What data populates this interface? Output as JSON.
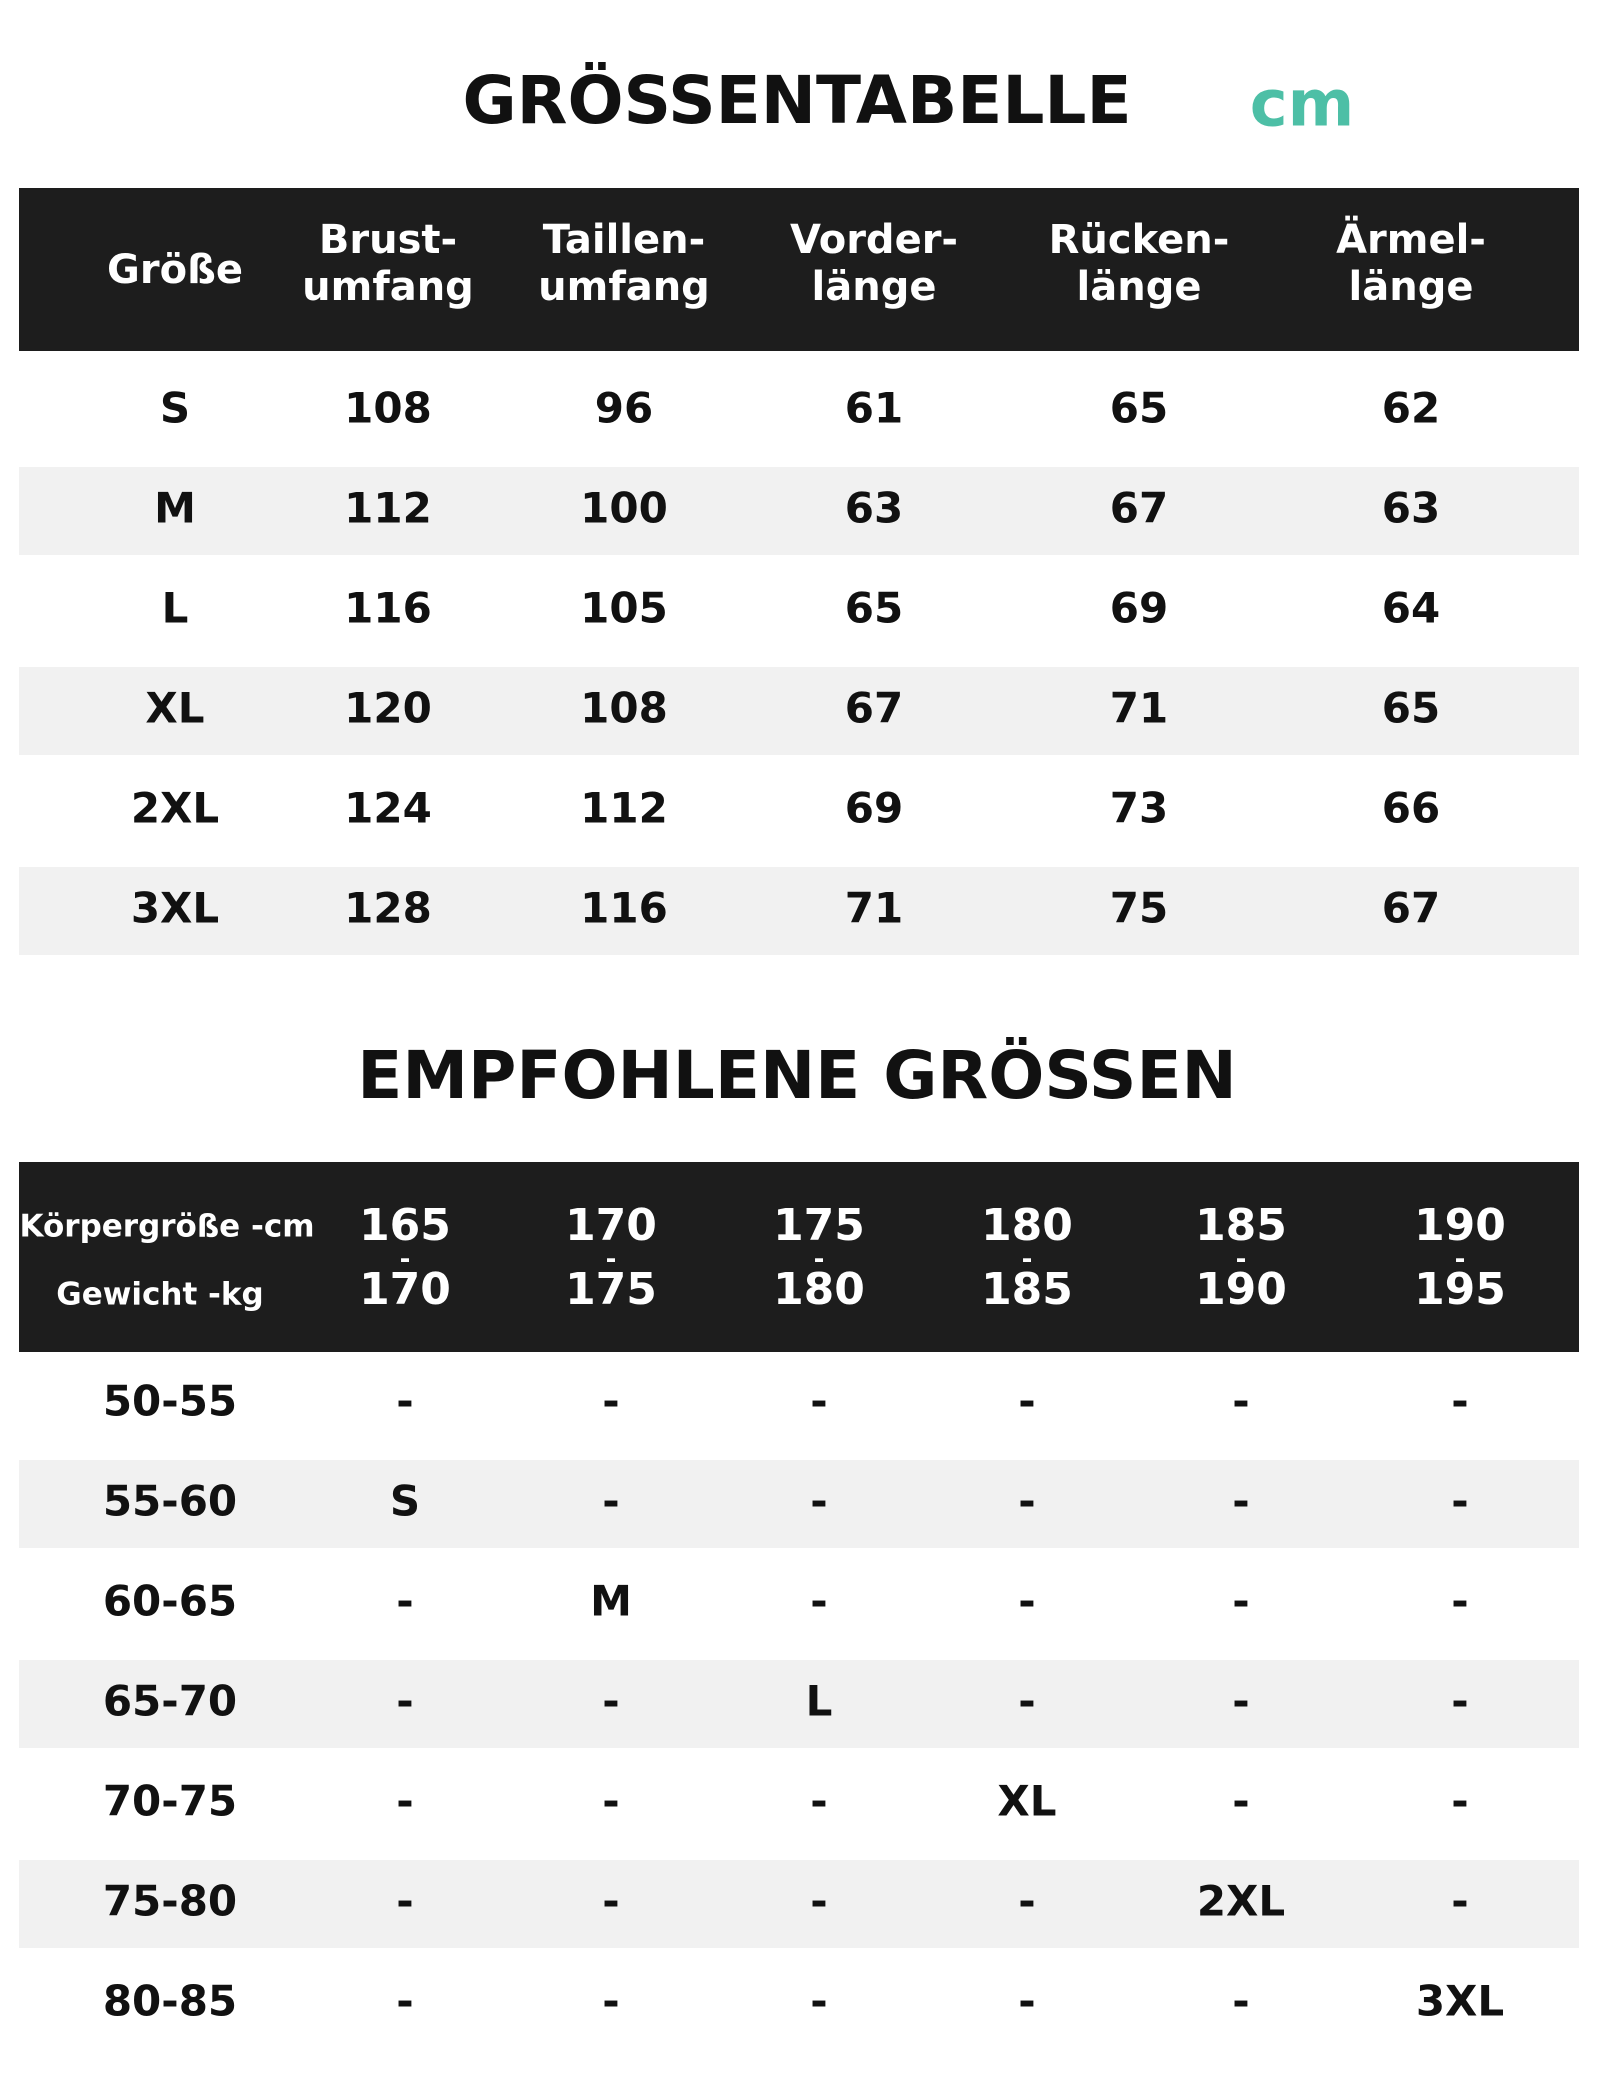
{
  "title": "GRÖSSENTABELLE",
  "unit": "cm",
  "size_table": {
    "header": [
      [
        "Größe"
      ],
      [
        "Brust-",
        "umfang"
      ],
      [
        "Taillen-",
        "umfang"
      ],
      [
        "Vorder-",
        "länge"
      ],
      [
        "Rücken-",
        "länge"
      ],
      [
        "Ärmel-",
        "länge"
      ]
    ],
    "rows": [
      [
        "S",
        "108",
        "96",
        "61",
        "65",
        "62"
      ],
      [
        "M",
        "112",
        "100",
        "63",
        "67",
        "63"
      ],
      [
        "L",
        "116",
        "105",
        "65",
        "69",
        "64"
      ],
      [
        "XL",
        "120",
        "108",
        "67",
        "71",
        "65"
      ],
      [
        "2XL",
        "124",
        "112",
        "69",
        "73",
        "66"
      ],
      [
        "3XL",
        "128",
        "116",
        "71",
        "75",
        "67"
      ]
    ]
  },
  "title2": "EMPFOHLENE GRÖSSEN",
  "recommend_table": {
    "header_labels": [
      "Körpergröße -cm",
      "Gewicht -kg"
    ],
    "header": [
      [
        "165",
        "-",
        "170"
      ],
      [
        "170",
        "-",
        "175"
      ],
      [
        "175",
        "-",
        "180"
      ],
      [
        "180",
        "-",
        "185"
      ],
      [
        "185",
        "-",
        "190"
      ],
      [
        "190",
        "-",
        "195"
      ]
    ],
    "rows": [
      [
        "50-55",
        "-",
        "-",
        "-",
        "-",
        "-",
        "-"
      ],
      [
        "55-60",
        "S",
        "-",
        "-",
        "-",
        "-",
        "-"
      ],
      [
        "60-65",
        "-",
        "M",
        "-",
        "-",
        "-",
        "-"
      ],
      [
        "65-70",
        "-",
        "-",
        "L",
        "-",
        "-",
        "-"
      ],
      [
        "70-75",
        "-",
        "-",
        "-",
        "XL",
        "-",
        "-"
      ],
      [
        "75-80",
        "-",
        "-",
        "-",
        "-",
        "2XL",
        "-"
      ],
      [
        "80-85",
        "-",
        "-",
        "-",
        "-",
        "-",
        "3XL"
      ]
    ]
  }
}
